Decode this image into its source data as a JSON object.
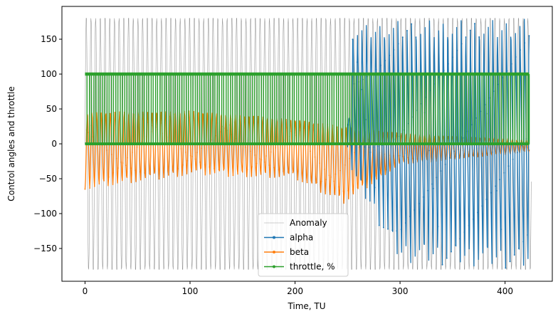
{
  "chart_data": {
    "type": "line",
    "title": "",
    "xlabel": "Time, TU",
    "ylabel": "Control angles and throttle",
    "xlim": [
      -22,
      445
    ],
    "ylim": [
      -197,
      197
    ],
    "xticks": [
      0,
      100,
      200,
      300,
      400
    ],
    "yticks": [
      -150,
      -100,
      -50,
      0,
      50,
      100,
      150
    ],
    "grid": false,
    "legend_position": "lower-center",
    "series": [
      {
        "name": "Anomaly",
        "color": "#808080",
        "marker": "none",
        "description_values": {
          "t_start": 0,
          "t_end": 425,
          "min": -180,
          "max": 180,
          "approx_cycles": 95
        }
      },
      {
        "name": "alpha",
        "color": "#1f77b4",
        "marker": "dot",
        "values_summary": [
          {
            "t": 250,
            "min": -5,
            "max": 5
          },
          {
            "t": 255,
            "min": -50,
            "max": 168
          },
          {
            "t": 300,
            "min": -170,
            "max": 177
          },
          {
            "t": 400,
            "min": -178,
            "max": 178
          },
          {
            "t": 423,
            "min": -180,
            "max": 180
          }
        ]
      },
      {
        "name": "beta",
        "color": "#ff7f0e",
        "marker": "dot",
        "values_summary": [
          {
            "t": 0,
            "min": -65,
            "max": 45
          },
          {
            "t": 100,
            "min": -45,
            "max": 47
          },
          {
            "t": 200,
            "min": -50,
            "max": 35
          },
          {
            "t": 245,
            "min": -88,
            "max": 25
          },
          {
            "t": 300,
            "min": -30,
            "max": 15
          },
          {
            "t": 423,
            "min": -12,
            "max": 5
          }
        ]
      },
      {
        "name": "throttle, %",
        "color": "#2ca02c",
        "marker": "dot",
        "levels": [
          0,
          100
        ],
        "t_range": [
          0,
          423
        ]
      }
    ]
  }
}
